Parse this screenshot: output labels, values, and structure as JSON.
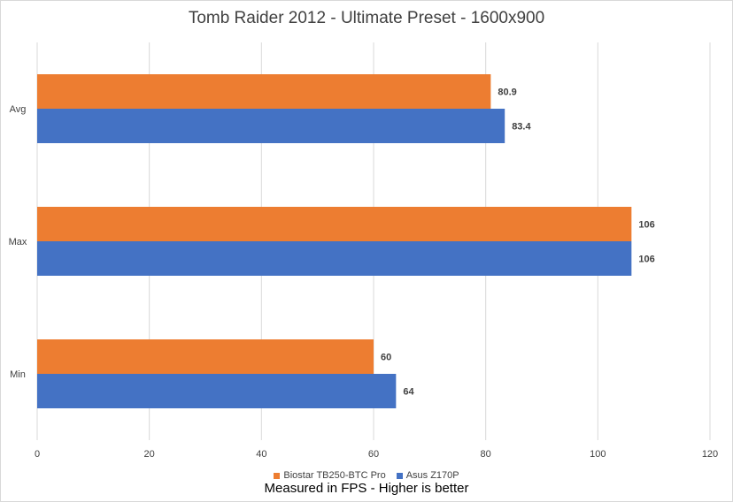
{
  "chart_data": {
    "type": "bar",
    "orientation": "horizontal",
    "title": "Tomb Raider 2012 - Ultimate Preset - 1600x900",
    "categories": [
      "Avg",
      "Max",
      "Min"
    ],
    "series": [
      {
        "name": "Biostar TB250-BTC Pro",
        "color": "#ED7D31",
        "values": [
          80.9,
          106,
          60
        ],
        "labels": [
          "80.9",
          "106",
          "60"
        ]
      },
      {
        "name": "Asus Z170P",
        "color": "#4472C4",
        "values": [
          83.4,
          106,
          64
        ],
        "labels": [
          "83.4",
          "106",
          "64"
        ]
      }
    ],
    "xlim": [
      0,
      120
    ],
    "xticks": [
      0,
      20,
      40,
      60,
      80,
      100,
      120
    ],
    "xlabel": "",
    "ylabel": "",
    "grid": "vertical",
    "legend": "bottom",
    "note": "Measured in FPS - Higher is better"
  }
}
